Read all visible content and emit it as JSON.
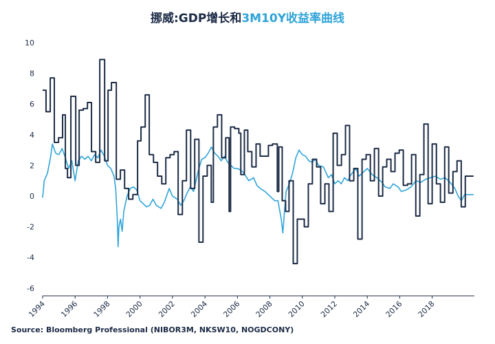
{
  "chart_data": {
    "type": "line",
    "title": {
      "prefix": "挪威:",
      "joiner": "和"
    },
    "source": "Source: Bloomberg Professional  (NIBOR3M, NKSW10, NOGDCONY)",
    "xlim": [
      1994,
      2020.6
    ],
    "xticks": [
      1994,
      1996,
      1998,
      2000,
      2002,
      2004,
      2006,
      2008,
      2010,
      2012,
      2014,
      2016,
      2018
    ],
    "ylim": [
      -6.5,
      10
    ],
    "yticks": [
      -6,
      -4,
      -2,
      0,
      2,
      4,
      6,
      8,
      10
    ],
    "grid": false,
    "series": [
      {
        "name": "GDP增长",
        "color": "#1b2a45",
        "step": true,
        "x": [
          1994.0,
          1994.21,
          1994.47,
          1994.72,
          1994.98,
          1995.23,
          1995.4,
          1995.53,
          1995.74,
          1996.04,
          1996.25,
          1996.5,
          1996.76,
          1997.01,
          1997.27,
          1997.52,
          1997.82,
          1998.03,
          1998.24,
          1998.54,
          1998.79,
          1999.05,
          1999.3,
          1999.56,
          1999.85,
          2000.06,
          2000.32,
          2000.57,
          2000.83,
          2001.08,
          2001.34,
          2001.59,
          2001.85,
          2002.1,
          2002.35,
          2002.61,
          2002.86,
          2003.12,
          2003.37,
          2003.63,
          2003.88,
          2004.14,
          2004.39,
          2004.52,
          2004.77,
          2005.03,
          2005.28,
          2005.49,
          2005.58,
          2005.83,
          2006.09,
          2006.21,
          2006.43,
          2006.64,
          2006.89,
          2007.15,
          2007.4,
          2007.66,
          2007.91,
          2008.16,
          2008.46,
          2008.55,
          2008.76,
          2008.97,
          2009.18,
          2009.44,
          2009.69,
          2010.12,
          2010.37,
          2010.62,
          2010.88,
          2011.13,
          2011.39,
          2011.64,
          2011.9,
          2012.15,
          2012.41,
          2012.66,
          2012.91,
          2013.17,
          2013.42,
          2013.68,
          2013.93,
          2014.19,
          2014.44,
          2014.7,
          2014.95,
          2015.2,
          2015.46,
          2015.71,
          2015.97,
          2016.22,
          2016.48,
          2016.73,
          2016.99,
          2017.24,
          2017.49,
          2017.75,
          2018.0,
          2018.26,
          2018.51,
          2018.77,
          2019.02,
          2019.28,
          2019.53,
          2019.79,
          2020.04,
          2020.29,
          2020.55
        ],
        "values": [
          6.9,
          5.5,
          7.7,
          3.5,
          3.8,
          5.3,
          1.8,
          1.2,
          6.5,
          2.0,
          5.6,
          5.7,
          6.1,
          2.9,
          2.2,
          8.9,
          2.3,
          6.9,
          7.4,
          1.1,
          1.7,
          0.5,
          -0.2,
          0.1,
          3.6,
          4.5,
          6.6,
          2.7,
          2.2,
          1.3,
          0.8,
          2.5,
          2.7,
          2.9,
          -1.2,
          1.0,
          4.3,
          0.5,
          3.7,
          -3.0,
          1.3,
          2.0,
          -0.4,
          4.5,
          5.3,
          2.5,
          3.8,
          -1.0,
          4.5,
          4.4,
          4.1,
          1.4,
          4.3,
          2.9,
          1.9,
          3.4,
          2.6,
          2.6,
          3.3,
          3.4,
          0.3,
          3.2,
          -0.3,
          -1.0,
          1.0,
          -4.4,
          -1.5,
          -2.0,
          0.8,
          2.4,
          1.9,
          -0.5,
          0.8,
          -1.0,
          4.1,
          2.0,
          2.7,
          4.6,
          1.0,
          1.8,
          -2.8,
          2.4,
          2.7,
          1.0,
          3.1,
          0.0,
          1.9,
          2.4,
          1.6,
          2.8,
          3.0,
          0.7,
          0.8,
          2.7,
          -1.3,
          1.4,
          4.7,
          -0.5,
          3.4,
          0.8,
          -0.4,
          3.2,
          0.2,
          1.6,
          2.3,
          -0.7,
          1.3,
          1.3,
          1.3
        ]
      },
      {
        "name": "3M10Y收益率曲线",
        "color": "#2ea3d8",
        "step": false,
        "x": [
          1994.0,
          1994.1,
          1994.3,
          1994.5,
          1994.6,
          1994.8,
          1995.0,
          1995.2,
          1995.4,
          1995.6,
          1995.8,
          1996.0,
          1996.2,
          1996.4,
          1996.6,
          1996.8,
          1997.0,
          1997.2,
          1997.4,
          1997.6,
          1997.8,
          1998.0,
          1998.2,
          1998.4,
          1998.5,
          1998.6,
          1998.65,
          1998.7,
          1998.8,
          1998.9,
          1999.0,
          1999.2,
          1999.4,
          1999.6,
          1999.8,
          2000.0,
          2000.2,
          2000.4,
          2000.6,
          2000.8,
          2001.0,
          2001.3,
          2001.5,
          2001.8,
          2002.0,
          2002.3,
          2002.5,
          2002.7,
          2002.9,
          2003.1,
          2003.3,
          2003.6,
          2003.8,
          2004.0,
          2004.2,
          2004.4,
          2004.6,
          2004.8,
          2005.0,
          2005.2,
          2005.4,
          2005.6,
          2005.8,
          2006.0,
          2006.2,
          2006.4,
          2006.7,
          2007.0,
          2007.2,
          2007.4,
          2007.7,
          2008.0,
          2008.3,
          2008.5,
          2008.7,
          2008.8,
          2008.9,
          2009.0,
          2009.2,
          2009.4,
          2009.6,
          2009.8,
          2010.0,
          2010.2,
          2010.4,
          2010.6,
          2010.8,
          2011.0,
          2011.3,
          2011.6,
          2011.8,
          2012.0,
          2012.2,
          2012.4,
          2012.6,
          2012.8,
          2013.0,
          2013.3,
          2013.5,
          2013.8,
          2014.0,
          2014.3,
          2014.6,
          2014.9,
          2015.1,
          2015.4,
          2015.6,
          2015.9,
          2016.1,
          2016.4,
          2016.7,
          2017.0,
          2017.3,
          2017.6,
          2017.9,
          2018.2,
          2018.5,
          2018.8,
          2019.1,
          2019.4,
          2019.6,
          2019.8,
          2020.0,
          2020.3,
          2020.55
        ],
        "values": [
          -0.1,
          1.0,
          1.5,
          2.6,
          3.4,
          2.8,
          2.7,
          3.1,
          2.5,
          1.8,
          2.3,
          1.0,
          2.3,
          2.6,
          2.4,
          2.6,
          2.3,
          2.7,
          2.5,
          3.0,
          2.6,
          2.0,
          1.8,
          1.3,
          0.5,
          -1.5,
          -3.3,
          -2.0,
          -1.5,
          -2.3,
          -1.0,
          0.0,
          0.5,
          0.6,
          0.4,
          -0.3,
          -0.5,
          -0.7,
          -0.6,
          -0.2,
          -0.6,
          -0.8,
          -0.4,
          0.5,
          0.0,
          -0.2,
          -0.6,
          -0.3,
          0.2,
          0.6,
          0.3,
          1.7,
          2.4,
          2.5,
          2.8,
          3.2,
          2.8,
          2.6,
          2.3,
          2.6,
          2.2,
          2.0,
          1.8,
          1.8,
          1.7,
          1.5,
          1.0,
          1.2,
          0.7,
          0.5,
          0.3,
          0.0,
          -0.3,
          -0.3,
          -1.5,
          -2.4,
          -1.0,
          0.3,
          0.8,
          1.5,
          2.5,
          3.0,
          2.7,
          2.6,
          2.3,
          2.2,
          2.4,
          2.0,
          1.9,
          1.2,
          1.4,
          0.8,
          1.0,
          0.8,
          1.2,
          1.0,
          1.4,
          1.8,
          1.3,
          1.6,
          1.8,
          1.4,
          1.2,
          0.9,
          0.6,
          0.5,
          0.8,
          0.6,
          0.3,
          0.4,
          0.6,
          1.0,
          0.9,
          1.1,
          1.2,
          1.3,
          1.1,
          1.2,
          0.9,
          0.5,
          0.0,
          -0.3,
          0.1,
          0.1,
          0.1
        ]
      }
    ]
  }
}
